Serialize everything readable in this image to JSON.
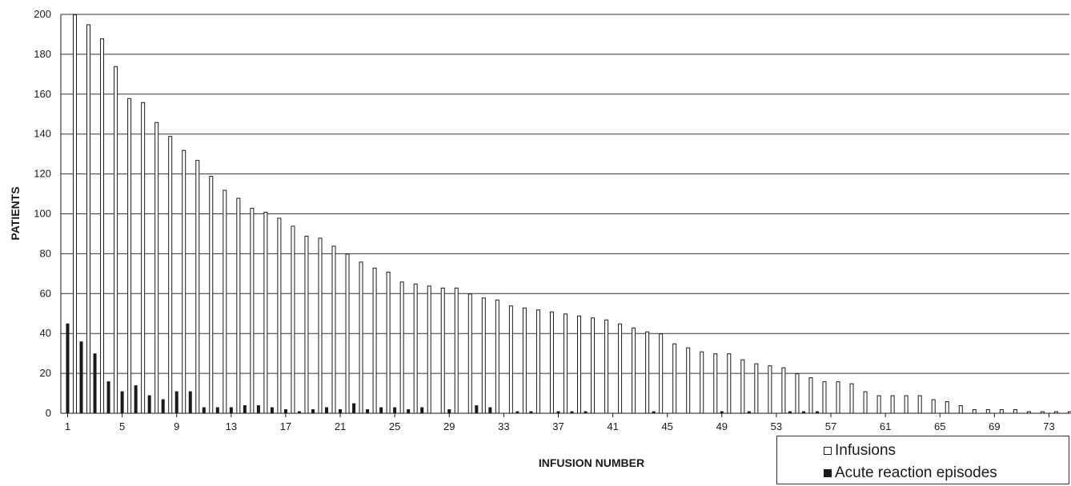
{
  "chart_data": {
    "type": "bar",
    "xlabel": "INFUSION NUMBER",
    "ylabel": "PATIENTS",
    "ylim": [
      0,
      200
    ],
    "yticks": [
      0,
      20,
      40,
      60,
      80,
      100,
      120,
      140,
      160,
      180,
      200
    ],
    "xticks": [
      1,
      5,
      9,
      13,
      17,
      21,
      25,
      29,
      33,
      37,
      41,
      45,
      49,
      53,
      57,
      61,
      65,
      69,
      73
    ],
    "categories": [
      1,
      2,
      3,
      4,
      5,
      6,
      7,
      8,
      9,
      10,
      11,
      12,
      13,
      14,
      15,
      16,
      17,
      18,
      19,
      20,
      21,
      22,
      23,
      24,
      25,
      26,
      27,
      28,
      29,
      30,
      31,
      32,
      33,
      34,
      35,
      36,
      37,
      38,
      39,
      40,
      41,
      42,
      43,
      44,
      45,
      46,
      47,
      48,
      49,
      50,
      51,
      52,
      53,
      54,
      55,
      56,
      57,
      58,
      59,
      60,
      61,
      62,
      63,
      64,
      65,
      66,
      67,
      68,
      69,
      70,
      71,
      72,
      73,
      74
    ],
    "grid": true,
    "legend_position": "bottom-right",
    "series": [
      {
        "name": "Infusions",
        "style": "open",
        "values": [
          200,
          195,
          188,
          174,
          158,
          156,
          146,
          139,
          132,
          127,
          119,
          112,
          108,
          103,
          101,
          98,
          94,
          89,
          88,
          84,
          80,
          76,
          73,
          71,
          66,
          65,
          64,
          63,
          63,
          60,
          58,
          57,
          54,
          53,
          52,
          51,
          50,
          49,
          48,
          47,
          45,
          43,
          41,
          40,
          35,
          33,
          31,
          30,
          30,
          27,
          25,
          24,
          23,
          20,
          18,
          16,
          16,
          15,
          11,
          9,
          9,
          9,
          9,
          7,
          6,
          4,
          2,
          2,
          2,
          2,
          1,
          1,
          1,
          1
        ]
      },
      {
        "name": "Acute reaction episodes",
        "style": "solid",
        "values": [
          45,
          36,
          30,
          16,
          11,
          14,
          9,
          7,
          11,
          11,
          3,
          3,
          3,
          4,
          4,
          3,
          2,
          1,
          2,
          3,
          2,
          5,
          2,
          3,
          3,
          2,
          3,
          0,
          2,
          0,
          4,
          3,
          0,
          1,
          1,
          0,
          1,
          1,
          1,
          0,
          0,
          0,
          0,
          1,
          0,
          0,
          0,
          0,
          1,
          0,
          1,
          0,
          0,
          1,
          1,
          1,
          0,
          0,
          0,
          0,
          0,
          0,
          0,
          0,
          0,
          0,
          0,
          0,
          0,
          0,
          0,
          0,
          0,
          0
        ]
      }
    ]
  },
  "legend": {
    "items": [
      {
        "label": "Infusions"
      },
      {
        "label": "Acute reaction episodes"
      }
    ]
  },
  "colors": {
    "open_fill": "#ffffff",
    "solid_fill": "#1a1a1a",
    "outline": "#1a1a1a",
    "grid": "#333333"
  }
}
